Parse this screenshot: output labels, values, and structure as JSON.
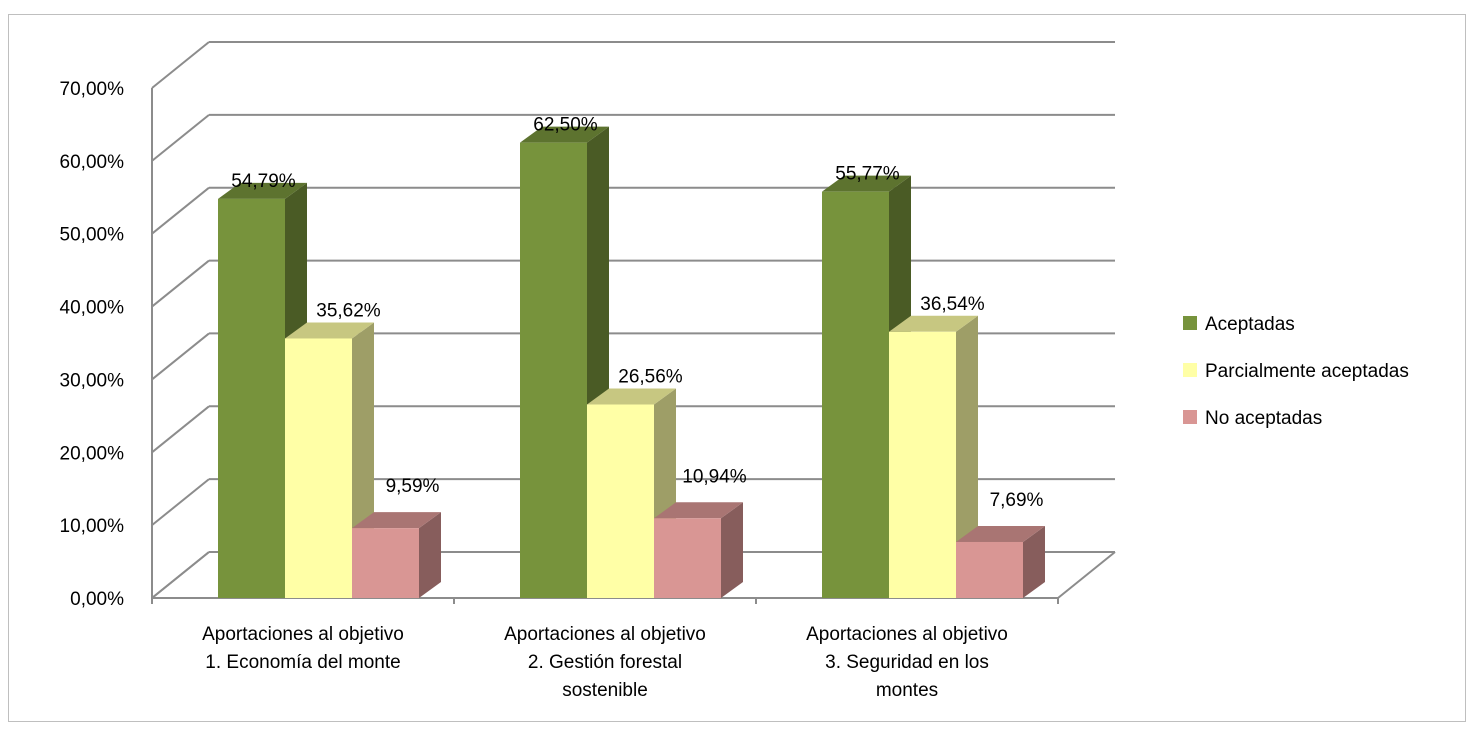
{
  "chart_data": {
    "type": "bar",
    "title": "",
    "xlabel": "",
    "ylabel": "",
    "categories": [
      [
        "Aportaciones al objetivo",
        "1. Economía del monte"
      ],
      [
        "Aportaciones al objetivo",
        "2. Gestión forestal",
        "sostenible"
      ],
      [
        "Aportaciones al objetivo",
        "3. Seguridad en los",
        "montes"
      ]
    ],
    "series": [
      {
        "name": "Aceptadas",
        "values": [
          54.79,
          62.5,
          55.77
        ],
        "labels": [
          "54,79%",
          "62,50%",
          "55,77%"
        ],
        "color": "#77933C"
      },
      {
        "name": "Parcialmente aceptadas",
        "values": [
          35.62,
          26.56,
          36.54
        ],
        "labels": [
          "35,62%",
          "26,56%",
          "36,54%"
        ],
        "color": "#FFFFA6"
      },
      {
        "name": "No aceptadas",
        "values": [
          9.59,
          10.94,
          7.69
        ],
        "labels": [
          "9,59%",
          "10,94%",
          "7,69%"
        ],
        "color": "#D99694"
      }
    ],
    "ylim": [
      0,
      70
    ],
    "yticks": [
      "0,00%",
      "10,00%",
      "20,00%",
      "30,00%",
      "40,00%",
      "50,00%",
      "60,00%",
      "70,00%"
    ],
    "grid": true,
    "legend": "right",
    "style": "3d-column"
  }
}
